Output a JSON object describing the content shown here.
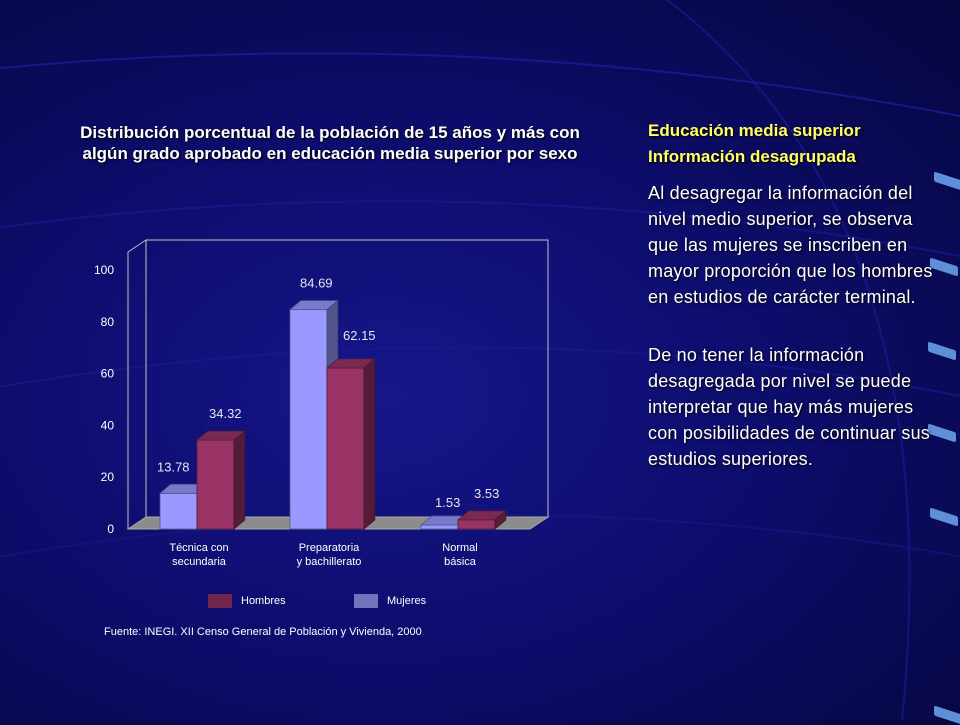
{
  "chart_data": {
    "type": "bar",
    "title": "Distribución porcentual de la población de 15 años y más con algún grado aprobado en educación media superior por sexo",
    "categories": [
      "Técnica con secundaria",
      "Preparatoria y bachillerato",
      "Normal básica"
    ],
    "category_lines": [
      [
        "Técnica con",
        "secundaria"
      ],
      [
        "Preparatoria",
        "y bachillerato"
      ],
      [
        "Normal",
        "básica"
      ]
    ],
    "series": [
      {
        "name": "Mujeres",
        "values": [
          13.78,
          84.69,
          1.53
        ],
        "color": "#9999ff"
      },
      {
        "name": "Hombres",
        "values": [
          34.32,
          62.15,
          3.53
        ],
        "color": "#993366"
      }
    ],
    "data_labels": [
      "13.78",
      "84.69",
      "1.53",
      "34.32",
      "62.15",
      "3.53"
    ],
    "ylim": [
      0,
      100
    ],
    "yticks": [
      "0",
      "20",
      "40",
      "60",
      "80",
      "100"
    ],
    "legend": {
      "position": "bottom",
      "entries": [
        "Hombres",
        "Mujeres"
      ]
    },
    "grid": false,
    "style": "3d"
  },
  "chart": {
    "title": "Distribución porcentual de la población de 15 años y más con algún grado aprobado en educación media superior por sexo",
    "source": "Fuente: INEGI. XII Censo General de Población y Vivienda, 2000"
  },
  "side": {
    "heading1": "Educación media superior",
    "heading2": "Información desagrupada",
    "paragraph1": "Al desagregar la información del nivel medio superior, se observa que las mujeres se inscriben en mayor proporción que los hombres en estudios de carácter terminal.",
    "paragraph2": "De no tener la información desagregada por nivel se puede interpretar que hay más mujeres con posibilidades de continuar sus estudios superiores."
  },
  "colors": {
    "background": "#0d0d6e",
    "heading": "#ffff66",
    "mujeres": "#9999ff",
    "hombres": "#993366",
    "accent": "#5f8fd8"
  }
}
